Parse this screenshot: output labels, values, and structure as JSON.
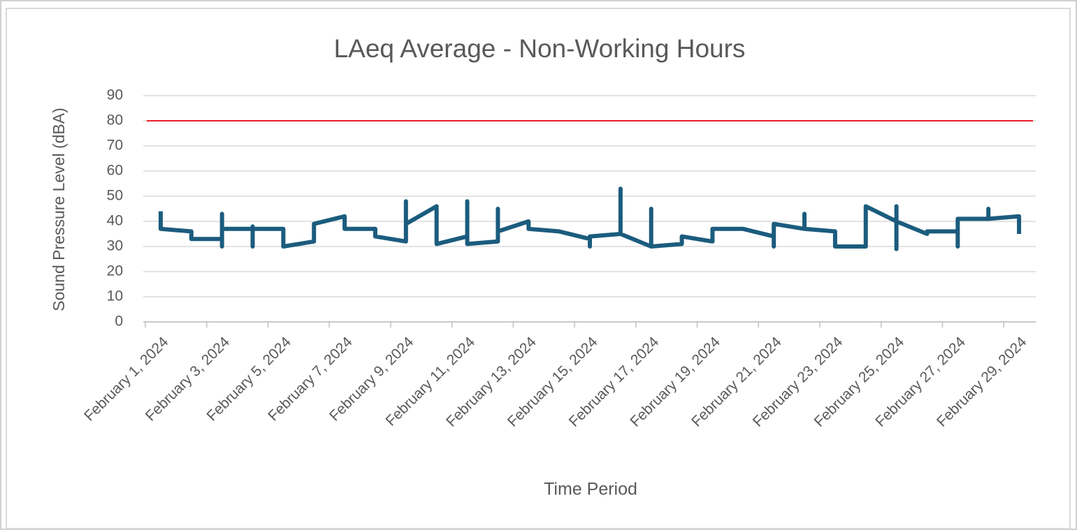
{
  "chart_data": {
    "type": "line",
    "title": "LAeq Average - Non-Working Hours",
    "y_label": "Sound Pressure Level (dBA)",
    "x_label": "Time Period",
    "x": [
      "2024-02-01",
      "2024-02-01",
      "2024-02-02",
      "2024-02-02",
      "2024-02-03",
      "2024-02-03",
      "2024-02-03",
      "2024-02-03",
      "2024-02-04",
      "2024-02-04",
      "2024-02-04",
      "2024-02-04",
      "2024-02-05",
      "2024-02-05",
      "2024-02-06",
      "2024-02-06",
      "2024-02-07",
      "2024-02-07",
      "2024-02-08",
      "2024-02-08",
      "2024-02-09",
      "2024-02-09",
      "2024-02-09",
      "2024-02-10",
      "2024-02-10",
      "2024-02-11",
      "2024-02-11",
      "2024-02-11",
      "2024-02-12",
      "2024-02-12",
      "2024-02-12",
      "2024-02-13",
      "2024-02-13",
      "2024-02-14",
      "2024-02-15",
      "2024-02-15",
      "2024-02-15",
      "2024-02-16",
      "2024-02-16",
      "2024-02-16",
      "2024-02-17",
      "2024-02-17",
      "2024-02-17",
      "2024-02-18",
      "2024-02-18",
      "2024-02-19",
      "2024-02-19",
      "2024-02-20",
      "2024-02-21",
      "2024-02-21",
      "2024-02-21",
      "2024-02-22",
      "2024-02-22",
      "2024-02-22",
      "2024-02-23",
      "2024-02-23",
      "2024-02-24",
      "2024-02-24",
      "2024-02-25",
      "2024-02-25",
      "2024-02-25",
      "2024-02-25",
      "2024-02-26",
      "2024-02-26",
      "2024-02-27",
      "2024-02-27",
      "2024-02-27",
      "2024-02-28",
      "2024-02-28",
      "2024-02-28",
      "2024-02-29",
      "2024-02-29"
    ],
    "series": [
      {
        "color": "#1b5c7e",
        "values": [
          44,
          37,
          36,
          33,
          33,
          43,
          30,
          37,
          37,
          38,
          30,
          37,
          37,
          30,
          32,
          39,
          42,
          37,
          37,
          34,
          32,
          48,
          39,
          46,
          31,
          34,
          48,
          31,
          32,
          45,
          36,
          40,
          37,
          36,
          33,
          30,
          34,
          35,
          53,
          35,
          30,
          45,
          30,
          31,
          34,
          32,
          37,
          37,
          34,
          30,
          39,
          37,
          43,
          37,
          36,
          30,
          30,
          46,
          40,
          46,
          29,
          40,
          35,
          36,
          36,
          30,
          41,
          41,
          45,
          41,
          42,
          35
        ]
      }
    ],
    "reference_line": {
      "value": 80,
      "color": "#e8202a"
    },
    "xlim": [
      "2024-02-01",
      "2024-03-01"
    ],
    "xticks": [
      {
        "value": "2024-02-01",
        "label": "February 1, 2024"
      },
      {
        "value": "2024-02-03",
        "label": "February 3, 2024"
      },
      {
        "value": "2024-02-05",
        "label": "February 5, 2024"
      },
      {
        "value": "2024-02-07",
        "label": "February 7, 2024"
      },
      {
        "value": "2024-02-09",
        "label": "February 9, 2024"
      },
      {
        "value": "2024-02-11",
        "label": "February 11, 2024"
      },
      {
        "value": "2024-02-13",
        "label": "February 13, 2024"
      },
      {
        "value": "2024-02-15",
        "label": "February 15, 2024"
      },
      {
        "value": "2024-02-17",
        "label": "February 17, 2024"
      },
      {
        "value": "2024-02-19",
        "label": "February 19, 2024"
      },
      {
        "value": "2024-02-21",
        "label": "February 21, 2024"
      },
      {
        "value": "2024-02-23",
        "label": "February 23, 2024"
      },
      {
        "value": "2024-02-25",
        "label": "February 25, 2024"
      },
      {
        "value": "2024-02-27",
        "label": "February 27, 2024"
      },
      {
        "value": "2024-02-29",
        "label": "February 29, 2024"
      }
    ],
    "ylim": [
      0,
      90
    ],
    "yticks": [
      0,
      10,
      20,
      30,
      40,
      50,
      60,
      70,
      80,
      90
    ],
    "grid": true
  }
}
